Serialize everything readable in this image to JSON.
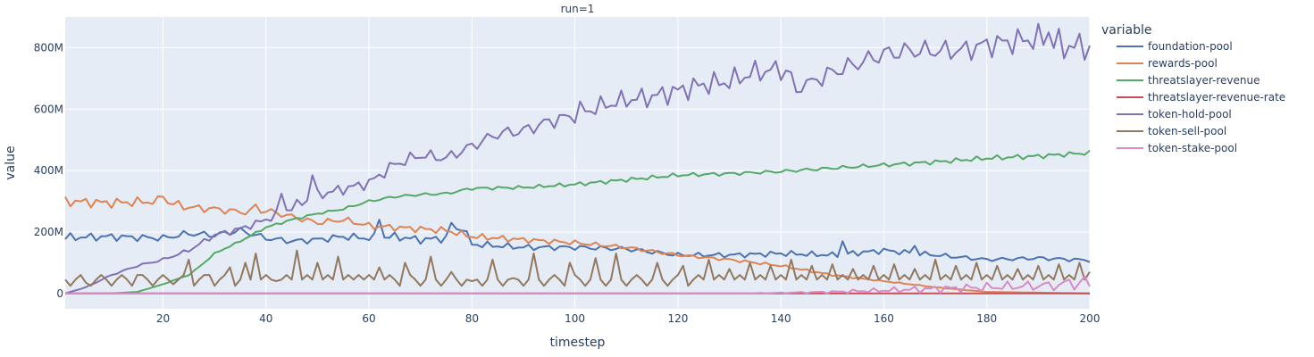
{
  "chart_data": {
    "type": "line",
    "facet_title": "run=1",
    "xlabel": "timestep",
    "ylabel": "value",
    "xlim": [
      1,
      200
    ],
    "ylim": [
      -50000000,
      900000000
    ],
    "x_ticks": [
      20,
      40,
      60,
      80,
      100,
      120,
      140,
      160,
      180,
      200
    ],
    "y_ticks": [
      {
        "value": 0,
        "label": "0"
      },
      {
        "value": 200000000,
        "label": "200M"
      },
      {
        "value": 400000000,
        "label": "400M"
      },
      {
        "value": 600000000,
        "label": "600M"
      },
      {
        "value": 800000000,
        "label": "800M"
      }
    ],
    "grid": true,
    "legend": {
      "title": "variable",
      "position": "right"
    },
    "colors": {
      "plot_bg": "#e5ecf6",
      "grid": "#ffffff",
      "text": "#2a3f5f"
    },
    "series": [
      {
        "name": "foundation-pool",
        "color": "#4c72b0",
        "points": [
          [
            1,
            182000000
          ],
          [
            10,
            185000000
          ],
          [
            20,
            180000000
          ],
          [
            25,
            195000000
          ],
          [
            30,
            190000000
          ],
          [
            35,
            205000000
          ],
          [
            40,
            180000000
          ],
          [
            45,
            170000000
          ],
          [
            50,
            175000000
          ],
          [
            55,
            185000000
          ],
          [
            60,
            180000000
          ],
          [
            65,
            185000000
          ],
          [
            70,
            175000000
          ],
          [
            75,
            180000000
          ],
          [
            78,
            220000000
          ],
          [
            80,
            160000000
          ],
          [
            90,
            150000000
          ],
          [
            100,
            150000000
          ],
          [
            110,
            145000000
          ],
          [
            120,
            125000000
          ],
          [
            130,
            125000000
          ],
          [
            140,
            130000000
          ],
          [
            150,
            125000000
          ],
          [
            160,
            140000000
          ],
          [
            170,
            125000000
          ],
          [
            180,
            110000000
          ],
          [
            190,
            115000000
          ],
          [
            200,
            108000000
          ]
        ],
        "noise": [
          0.08,
          11
        ],
        "spikes": [
          [
            62,
            240000000
          ],
          [
            76,
            230000000
          ],
          [
            152,
            170000000
          ],
          [
            166,
            155000000
          ]
        ]
      },
      {
        "name": "rewards-pool",
        "color": "#dd8452",
        "points": [
          [
            1,
            300000000
          ],
          [
            10,
            295000000
          ],
          [
            20,
            300000000
          ],
          [
            25,
            280000000
          ],
          [
            30,
            275000000
          ],
          [
            35,
            265000000
          ],
          [
            40,
            270000000
          ],
          [
            45,
            250000000
          ],
          [
            50,
            230000000
          ],
          [
            55,
            240000000
          ],
          [
            60,
            220000000
          ],
          [
            65,
            215000000
          ],
          [
            70,
            210000000
          ],
          [
            75,
            205000000
          ],
          [
            80,
            185000000
          ],
          [
            90,
            175000000
          ],
          [
            100,
            165000000
          ],
          [
            110,
            150000000
          ],
          [
            120,
            125000000
          ],
          [
            130,
            110000000
          ],
          [
            140,
            90000000
          ],
          [
            150,
            60000000
          ],
          [
            160,
            40000000
          ],
          [
            170,
            20000000
          ],
          [
            180,
            5000000
          ],
          [
            200,
            0
          ]
        ],
        "noise": [
          0.06,
          7
        ],
        "spikes": [
          [
            20,
            315000000
          ],
          [
            38,
            290000000
          ]
        ]
      },
      {
        "name": "threatslayer-revenue",
        "color": "#55a868",
        "points": [
          [
            1,
            0
          ],
          [
            10,
            0
          ],
          [
            15,
            5000000
          ],
          [
            20,
            30000000
          ],
          [
            25,
            60000000
          ],
          [
            28,
            100000000
          ],
          [
            30,
            130000000
          ],
          [
            35,
            170000000
          ],
          [
            40,
            215000000
          ],
          [
            45,
            240000000
          ],
          [
            50,
            260000000
          ],
          [
            55,
            275000000
          ],
          [
            60,
            300000000
          ],
          [
            65,
            315000000
          ],
          [
            70,
            322000000
          ],
          [
            75,
            325000000
          ],
          [
            80,
            342000000
          ],
          [
            90,
            345000000
          ],
          [
            100,
            355000000
          ],
          [
            110,
            370000000
          ],
          [
            120,
            385000000
          ],
          [
            130,
            390000000
          ],
          [
            140,
            397000000
          ],
          [
            150,
            408000000
          ],
          [
            160,
            418000000
          ],
          [
            170,
            428000000
          ],
          [
            180,
            440000000
          ],
          [
            190,
            447000000
          ],
          [
            200,
            458000000
          ]
        ],
        "noise": [
          0.02,
          13
        ],
        "spikes": []
      },
      {
        "name": "threatslayer-revenue-rate",
        "color": "#c44e52",
        "points": [
          [
            1,
            0
          ],
          [
            200,
            0
          ]
        ],
        "noise": [
          0,
          1
        ],
        "spikes": []
      },
      {
        "name": "token-hold-pool",
        "color": "#8172b3",
        "points": [
          [
            1,
            0
          ],
          [
            5,
            20000000
          ],
          [
            10,
            60000000
          ],
          [
            15,
            90000000
          ],
          [
            20,
            110000000
          ],
          [
            25,
            140000000
          ],
          [
            30,
            190000000
          ],
          [
            35,
            210000000
          ],
          [
            40,
            240000000
          ],
          [
            45,
            280000000
          ],
          [
            50,
            320000000
          ],
          [
            55,
            340000000
          ],
          [
            60,
            360000000
          ],
          [
            65,
            420000000
          ],
          [
            70,
            450000000
          ],
          [
            75,
            440000000
          ],
          [
            80,
            480000000
          ],
          [
            85,
            520000000
          ],
          [
            90,
            530000000
          ],
          [
            95,
            560000000
          ],
          [
            100,
            580000000
          ],
          [
            105,
            610000000
          ],
          [
            110,
            630000000
          ],
          [
            115,
            640000000
          ],
          [
            120,
            660000000
          ],
          [
            125,
            680000000
          ],
          [
            130,
            690000000
          ],
          [
            135,
            720000000
          ],
          [
            140,
            730000000
          ],
          [
            145,
            680000000
          ],
          [
            150,
            720000000
          ],
          [
            155,
            750000000
          ],
          [
            160,
            780000000
          ],
          [
            165,
            790000000
          ],
          [
            170,
            790000000
          ],
          [
            175,
            790000000
          ],
          [
            180,
            810000000
          ],
          [
            185,
            820000000
          ],
          [
            190,
            830000000
          ],
          [
            195,
            810000000
          ],
          [
            200,
            800000000
          ]
        ],
        "noise": [
          0.06,
          5
        ],
        "spikes": [
          [
            43,
            325000000
          ],
          [
            49,
            385000000
          ],
          [
            101,
            625000000
          ],
          [
            143,
            655000000
          ],
          [
            192,
            850000000
          ],
          [
            195,
            765000000
          ]
        ]
      },
      {
        "name": "token-sell-pool",
        "color": "#937860",
        "points": [
          [
            1,
            45000000
          ],
          [
            200,
            45000000
          ]
        ],
        "noise": [
          0,
          1
        ],
        "spikes": [
          [
            5,
            35000000
          ],
          [
            15,
            60000000
          ],
          [
            22,
            30000000
          ],
          [
            25,
            110000000
          ],
          [
            29,
            60000000
          ],
          [
            33,
            85000000
          ],
          [
            36,
            100000000
          ],
          [
            38,
            130000000
          ],
          [
            42,
            40000000
          ],
          [
            46,
            140000000
          ],
          [
            50,
            100000000
          ],
          [
            54,
            120000000
          ],
          [
            58,
            60000000
          ],
          [
            62,
            85000000
          ],
          [
            67,
            100000000
          ],
          [
            72,
            120000000
          ],
          [
            76,
            70000000
          ],
          [
            80,
            40000000
          ],
          [
            84,
            110000000
          ],
          [
            88,
            50000000
          ],
          [
            92,
            130000000
          ],
          [
            96,
            60000000
          ],
          [
            99,
            100000000
          ],
          [
            104,
            115000000
          ],
          [
            108,
            130000000
          ],
          [
            112,
            60000000
          ],
          [
            116,
            100000000
          ],
          [
            121,
            90000000
          ],
          [
            126,
            110000000
          ],
          [
            130,
            80000000
          ],
          [
            134,
            100000000
          ],
          [
            138,
            90000000
          ],
          [
            142,
            110000000
          ],
          [
            146,
            90000000
          ],
          [
            150,
            95000000
          ],
          [
            154,
            80000000
          ],
          [
            158,
            90000000
          ],
          [
            162,
            95000000
          ],
          [
            166,
            80000000
          ],
          [
            170,
            110000000
          ],
          [
            174,
            90000000
          ],
          [
            178,
            100000000
          ],
          [
            182,
            90000000
          ],
          [
            186,
            80000000
          ],
          [
            190,
            90000000
          ],
          [
            194,
            95000000
          ],
          [
            198,
            100000000
          ],
          [
            200,
            70000000
          ]
        ],
        "sawtooth": true
      },
      {
        "name": "token-stake-pool",
        "color": "#da8bc3",
        "points": [
          [
            1,
            0
          ],
          [
            130,
            0
          ],
          [
            140,
            2000000
          ],
          [
            150,
            5000000
          ],
          [
            160,
            10000000
          ],
          [
            170,
            15000000
          ],
          [
            180,
            20000000
          ],
          [
            190,
            25000000
          ],
          [
            200,
            30000000
          ]
        ],
        "noise": [
          0.9,
          3
        ],
        "spikes": [
          [
            196,
            45000000
          ],
          [
            199,
            55000000
          ]
        ]
      }
    ]
  }
}
